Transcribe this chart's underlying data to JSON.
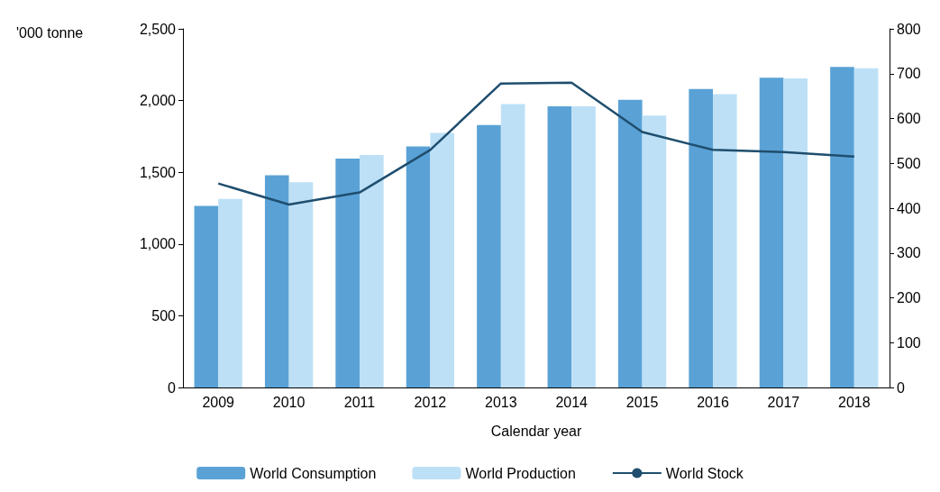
{
  "chart_data": {
    "type": "bar",
    "xlabel": "Calendar year",
    "ylabel": "'000 tonne",
    "categories": [
      "2009",
      "2010",
      "2011",
      "2012",
      "2013",
      "2014",
      "2015",
      "2016",
      "2017",
      "2018"
    ],
    "series": [
      {
        "name": "World Consumption",
        "color": "#5aa2d6",
        "values": [
          1265,
          1480,
          1595,
          1680,
          1830,
          1960,
          2005,
          2080,
          2160,
          2235
        ]
      },
      {
        "name": "World Production",
        "color": "#bde0f6",
        "values": [
          1315,
          1430,
          1620,
          1775,
          1975,
          1960,
          1895,
          2045,
          2155,
          2225
        ]
      },
      {
        "name": "World Stock",
        "type": "line",
        "axis": "y2",
        "color": "#1f4e6e",
        "marker": "none",
        "values": [
          455,
          408,
          435,
          530,
          678,
          680,
          570,
          530,
          525,
          515
        ]
      }
    ],
    "ylim": [
      0,
      2500
    ],
    "yticks": [
      {
        "value": 0,
        "label": "0"
      },
      {
        "value": 500,
        "label": "500"
      },
      {
        "value": 1000,
        "label": "1,000"
      },
      {
        "value": 1500,
        "label": "1,500"
      },
      {
        "value": 2000,
        "label": "2,000"
      },
      {
        "value": 2500,
        "label": "2,500"
      }
    ],
    "y2lim": [
      0,
      800
    ],
    "y2ticks": [
      0,
      100,
      200,
      300,
      400,
      500,
      600,
      700,
      800
    ],
    "grid": false,
    "legend": "bottom"
  }
}
